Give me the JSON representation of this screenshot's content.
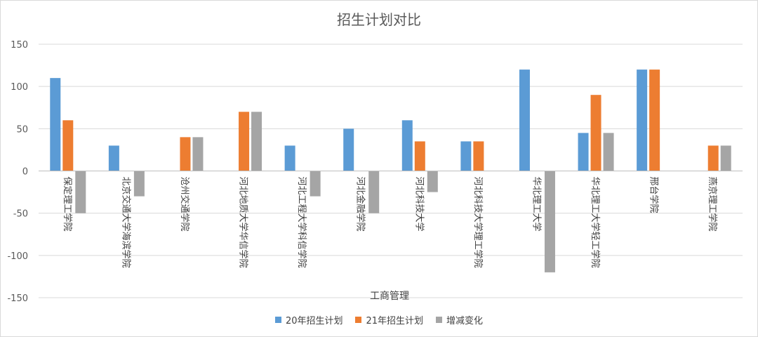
{
  "chart_data": {
    "type": "bar",
    "title": "招生计划对比",
    "xlabel": "工商管理",
    "ylabel": "",
    "ylim": [
      -150,
      150
    ],
    "yticks": [
      150,
      100,
      50,
      0,
      -50,
      -100,
      -150
    ],
    "grid": true,
    "legend_position": "bottom",
    "categories": [
      "保定理工学院",
      "北京交通大学海滨学院",
      "沧州交通学院",
      "河北地质大学华信学院",
      "河北工程大学科信学院",
      "河北金融学院",
      "河北科技大学",
      "河北科技大学理工学院",
      "华北理工大学",
      "华北理工大学轻工学院",
      "邢台学院",
      "燕京理工学院"
    ],
    "series": [
      {
        "name": "20年招生计划",
        "color": "#5b9bd5",
        "values": [
          110,
          30,
          0,
          0,
          30,
          50,
          60,
          35,
          120,
          45,
          120,
          0
        ]
      },
      {
        "name": "21年招生计划",
        "color": "#ed7d31",
        "values": [
          60,
          0,
          40,
          70,
          0,
          0,
          35,
          35,
          0,
          90,
          120,
          30
        ]
      },
      {
        "name": "增减变化",
        "color": "#a5a5a5",
        "values": [
          -50,
          -30,
          40,
          70,
          -30,
          -50,
          -25,
          0,
          -120,
          45,
          0,
          30
        ]
      }
    ]
  }
}
